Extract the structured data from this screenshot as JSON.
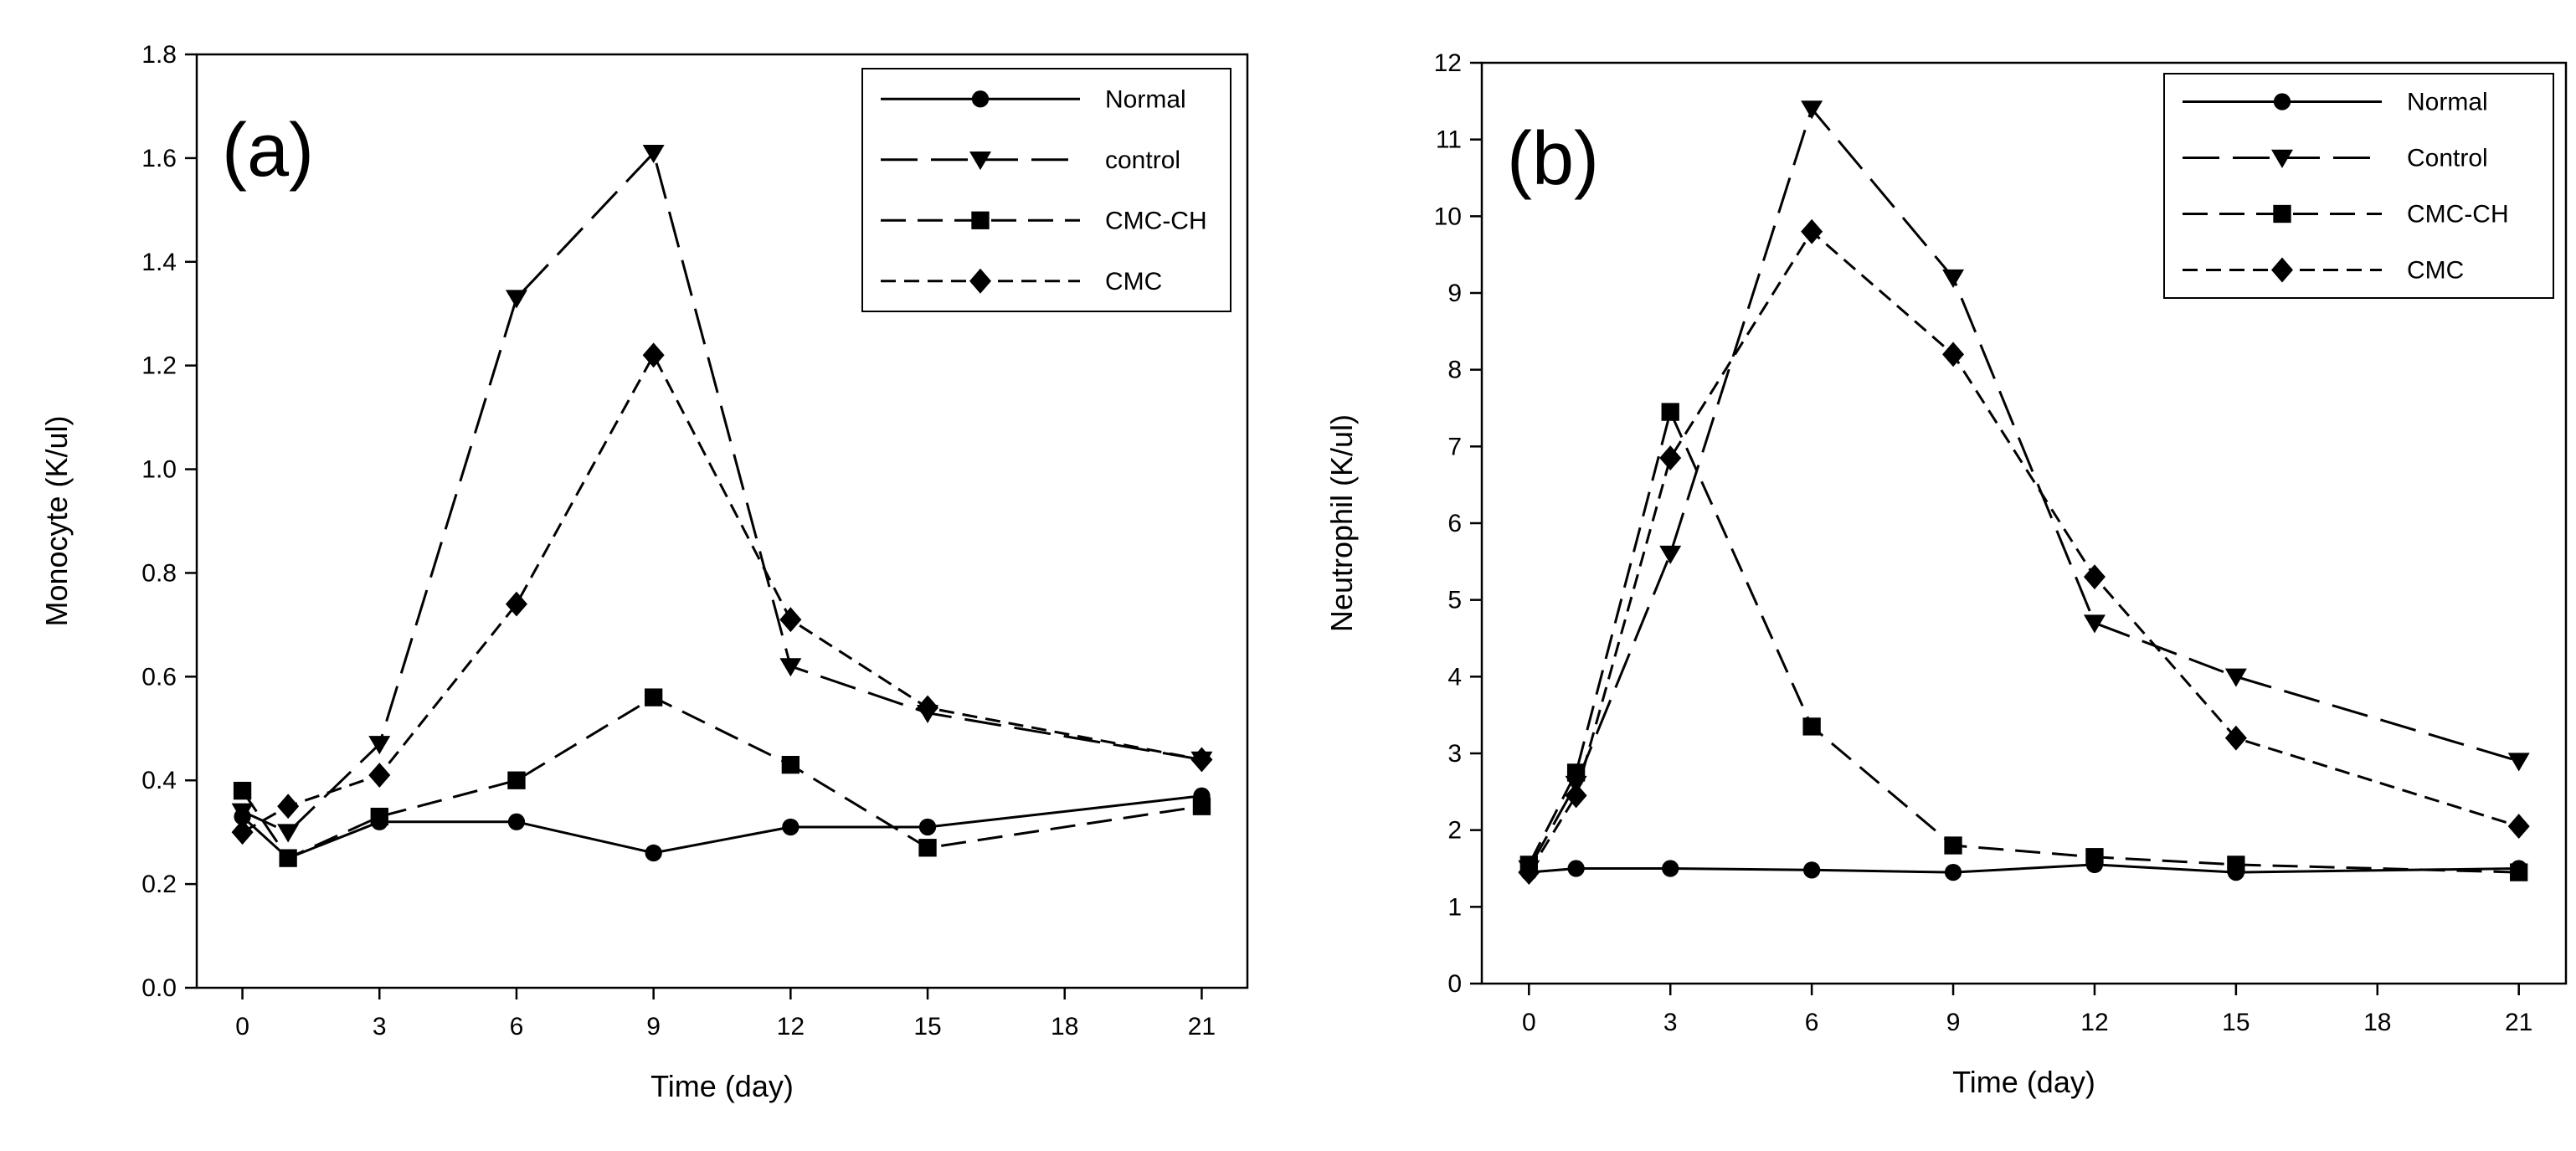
{
  "chart_data": [
    {
      "type": "line",
      "panel_label": "(a)",
      "xlabel": "Time (day)",
      "ylabel": "Monocyte (K/ul)",
      "xlim": [
        -1,
        22
      ],
      "ylim": [
        0.0,
        1.8
      ],
      "x_ticks": [
        0,
        3,
        6,
        9,
        12,
        15,
        18,
        21
      ],
      "x_tick_labels": [
        "0",
        "3",
        "6",
        "9",
        "12",
        "15",
        "18",
        "21"
      ],
      "y_ticks": [
        0.0,
        0.2,
        0.4,
        0.6,
        0.8,
        1.0,
        1.2,
        1.4,
        1.6,
        1.8
      ],
      "y_tick_labels": [
        "0.0",
        "0.2",
        "0.4",
        "0.6",
        "0.8",
        "1.0",
        "1.2",
        "1.4",
        "1.6",
        "1.8"
      ],
      "grid": false,
      "legend_position": "top-right",
      "x": [
        0,
        1,
        3,
        6,
        9,
        12,
        15,
        21
      ],
      "series": [
        {
          "name": "Normal",
          "marker": "circle",
          "dash": "solid",
          "values": [
            0.33,
            0.25,
            0.32,
            0.32,
            0.26,
            0.31,
            0.31,
            0.37
          ]
        },
        {
          "name": "control",
          "marker": "triangle-down",
          "dash": "long",
          "values": [
            0.34,
            0.3,
            0.47,
            1.33,
            1.61,
            0.62,
            0.53,
            0.44
          ]
        },
        {
          "name": "CMC-CH",
          "marker": "square",
          "dash": "medium",
          "values": [
            0.38,
            0.25,
            0.33,
            0.4,
            0.56,
            0.43,
            0.27,
            0.35
          ]
        },
        {
          "name": "CMC",
          "marker": "diamond",
          "dash": "short",
          "values": [
            0.3,
            0.35,
            0.41,
            0.74,
            1.22,
            0.71,
            0.54,
            0.44
          ]
        }
      ]
    },
    {
      "type": "line",
      "panel_label": "(b)",
      "xlabel": "Time (day)",
      "ylabel": "Neutrophil (K/ul)",
      "xlim": [
        -1,
        22
      ],
      "ylim": [
        0,
        12
      ],
      "x_ticks": [
        0,
        3,
        6,
        9,
        12,
        15,
        18,
        21
      ],
      "x_tick_labels": [
        "0",
        "3",
        "6",
        "9",
        "12",
        "15",
        "18",
        "21"
      ],
      "y_ticks": [
        0,
        1,
        2,
        3,
        4,
        5,
        6,
        7,
        8,
        9,
        10,
        11,
        12
      ],
      "y_tick_labels": [
        "0",
        "1",
        "2",
        "3",
        "4",
        "5",
        "6",
        "7",
        "8",
        "9",
        "10",
        "11",
        "12"
      ],
      "grid": false,
      "legend_position": "top-right",
      "x": [
        0,
        1,
        3,
        6,
        9,
        12,
        15,
        21
      ],
      "series": [
        {
          "name": "Normal",
          "marker": "circle",
          "dash": "solid",
          "values": [
            1.45,
            1.5,
            1.5,
            1.48,
            1.45,
            1.55,
            1.45,
            1.5
          ]
        },
        {
          "name": "Control",
          "marker": "triangle-down",
          "dash": "long",
          "values": [
            1.5,
            2.6,
            5.6,
            11.4,
            9.2,
            4.7,
            4.0,
            2.9
          ]
        },
        {
          "name": "CMC-CH",
          "marker": "square",
          "dash": "medium",
          "values": [
            1.55,
            2.75,
            7.45,
            3.35,
            1.8,
            1.65,
            1.55,
            1.45
          ]
        },
        {
          "name": "CMC",
          "marker": "diamond",
          "dash": "short",
          "values": [
            1.45,
            2.45,
            6.85,
            9.8,
            8.2,
            5.3,
            3.2,
            2.05
          ]
        }
      ]
    }
  ]
}
